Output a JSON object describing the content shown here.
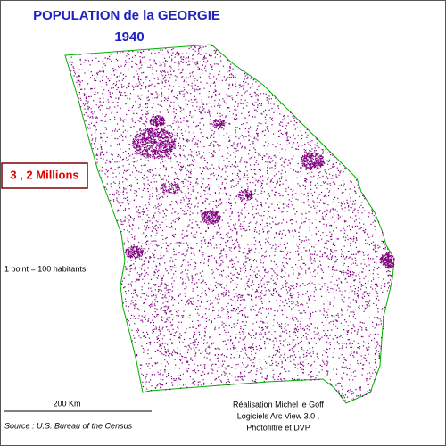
{
  "title": "POPULATION de la GEORGIE",
  "year": "1940",
  "total": "3 , 2 Millions",
  "legend": "1 point = 100 habitants",
  "scale": "200 Km",
  "source": "Source : U.S. Bureau of the Census",
  "credits": [
    "Réalisation Michel le Goff",
    "Logiciels Arc View 3.0 ,",
    "Photofiltre et DVP"
  ]
}
